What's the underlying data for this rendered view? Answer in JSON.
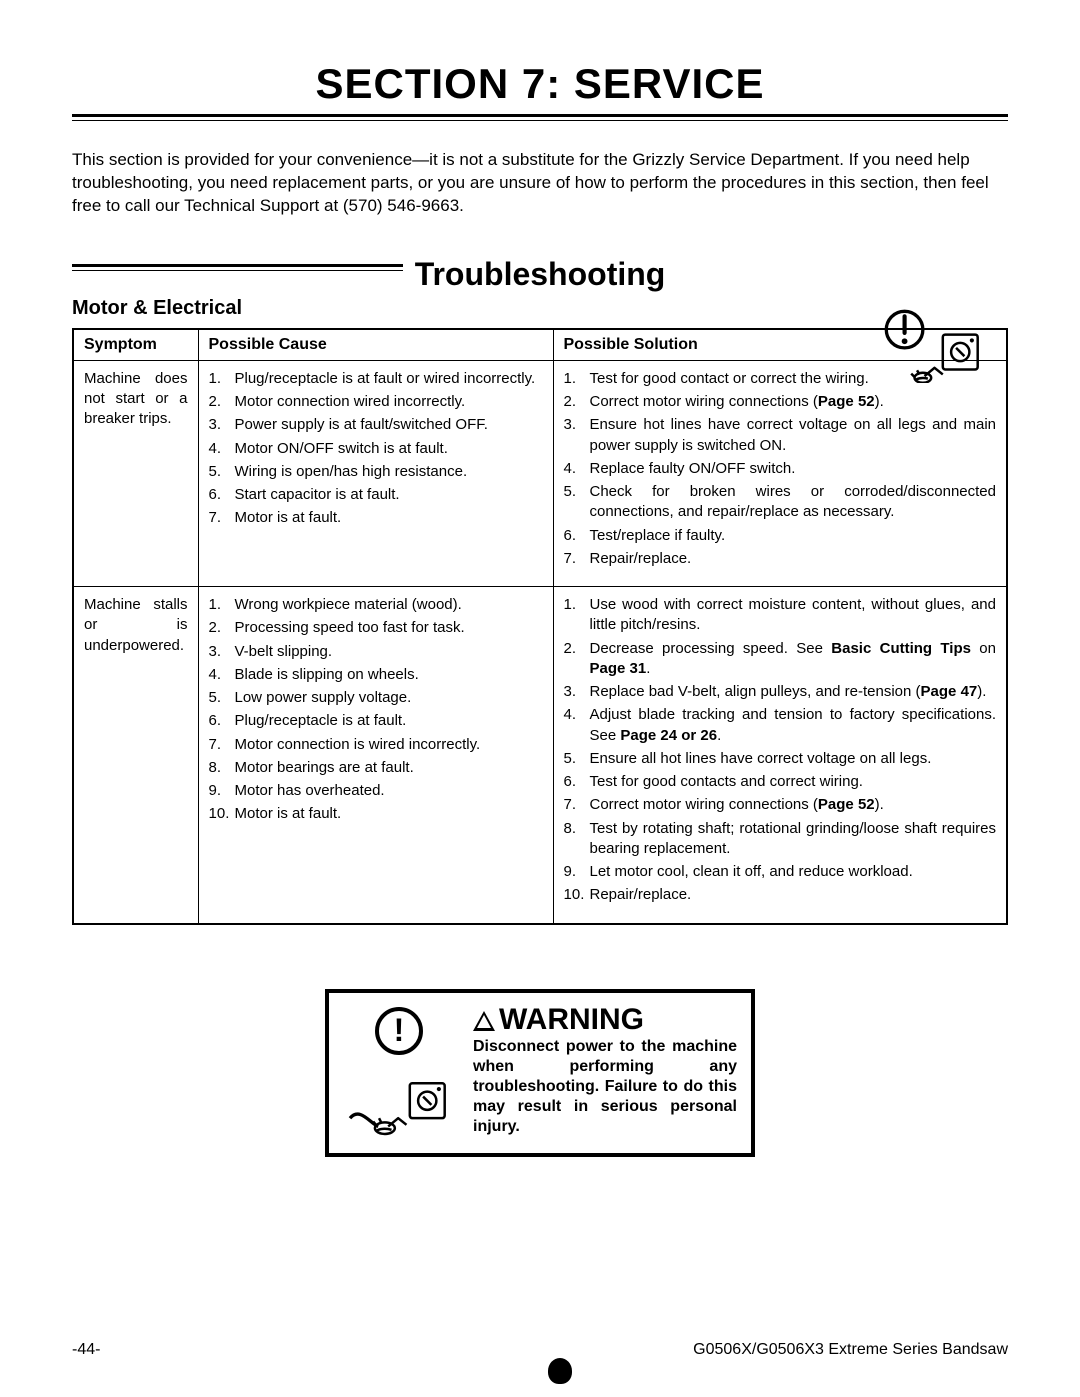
{
  "colors": {
    "text": "#000000",
    "background": "#ffffff",
    "border": "#000000"
  },
  "fonts": {
    "body_family": "Arial, Helvetica, sans-serif",
    "title_size_pt": 32,
    "sub_size_pt": 24,
    "body_size_pt": 12
  },
  "section_title": "SECTION 7: SERVICE",
  "intro": "This section is provided for your convenience—it is not a substitute for the Grizzly Service Department. If you need help troubleshooting, you need replacement parts, or you are unsure of how to perform the procedures in this section, then feel free to call our Technical Support at (570) 546-9663.",
  "sub_title": "Troubleshooting",
  "table_heading": "Motor & Electrical",
  "columns": {
    "symptom": "Symptom",
    "cause": "Possible Cause",
    "solution": "Possible Solution"
  },
  "rows": [
    {
      "symptom": "Machine does not start or a breaker trips.",
      "causes": [
        "Plug/receptacle is at fault or wired incorrectly.",
        "Motor connection wired incorrectly.",
        "Power supply is at fault/switched OFF.",
        "Motor ON/OFF switch is at fault.",
        "Wiring is open/has high resistance.",
        "Start capacitor is at fault.",
        "Motor is at fault."
      ],
      "solutions": [
        {
          "pre": "Test for good contact or correct the wiring."
        },
        {
          "pre": "Correct motor wiring connections (",
          "bold": "Page 52",
          "post": ")."
        },
        {
          "pre": "Ensure hot lines have correct voltage on all legs and main power supply is switched ON."
        },
        {
          "pre": "Replace faulty ON/OFF switch."
        },
        {
          "pre": "Check for broken wires or corroded/disconnected connections, and repair/replace as necessary."
        },
        {
          "pre": "Test/replace if faulty."
        },
        {
          "pre": "Repair/replace."
        }
      ]
    },
    {
      "symptom": "Machine stalls or is underpowered.",
      "causes": [
        "Wrong workpiece material (wood).",
        "Processing speed too fast for task.",
        "V-belt slipping.",
        "Blade is slipping on wheels.",
        "Low power supply voltage.",
        "Plug/receptacle is at fault.",
        "Motor connection is wired incorrectly.",
        "Motor bearings are at fault.",
        "Motor has overheated.",
        "Motor is at fault."
      ],
      "solutions": [
        {
          "pre": "Use wood with correct moisture content, without glues, and little pitch/resins."
        },
        {
          "pre": "Decrease processing speed. See ",
          "bold": "Basic Cutting Tips",
          "post": " on ",
          "bold2": "Page 31",
          "post2": "."
        },
        {
          "pre": "Replace bad V-belt, align pulleys, and re-tension (",
          "bold": "Page 47",
          "post": ")."
        },
        {
          "pre": "Adjust blade tracking and tension to factory specifications. See ",
          "bold": "Page 24 or 26",
          "post": "."
        },
        {
          "pre": "Ensure all hot lines have correct voltage on all legs."
        },
        {
          "pre": "Test for good contacts and correct wiring."
        },
        {
          "pre": "Correct motor wiring connections (",
          "bold": "Page 52",
          "post": ")."
        },
        {
          "pre": "Test by rotating shaft; rotational grinding/loose shaft requires bearing replacement."
        },
        {
          "pre": "Let motor cool, clean it off, and reduce workload."
        },
        {
          "pre": "Repair/replace."
        }
      ]
    }
  ],
  "warning": {
    "head": "WARNING",
    "text": "Disconnect power to the machine when performing any troubleshooting. Failure to do this may result in serious personal injury."
  },
  "footer": {
    "page": "-44-",
    "model": "G0506X/G0506X3 Extreme Series Bandsaw"
  }
}
